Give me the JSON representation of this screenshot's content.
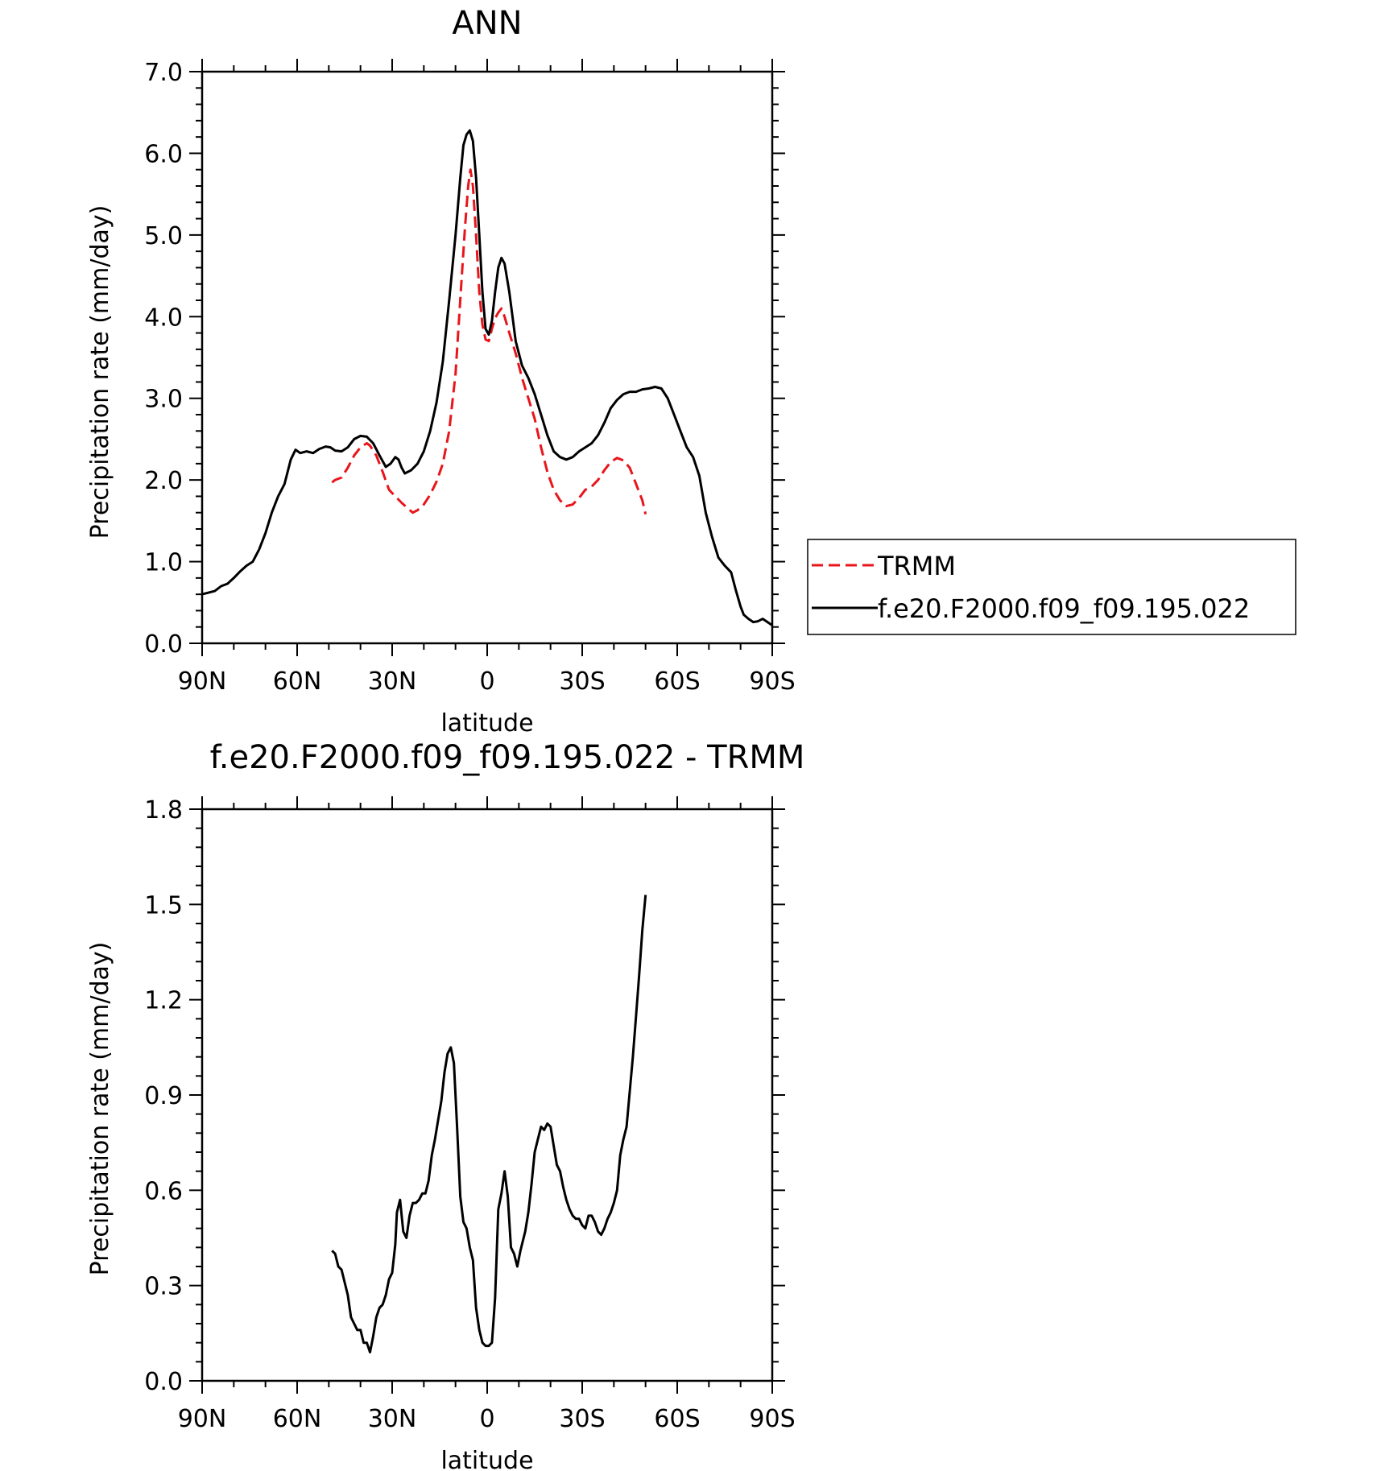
{
  "chart_data": [
    {
      "type": "line",
      "title": "ANN",
      "xlabel": "latitude",
      "ylabel": "Precipitation rate (mm/day)",
      "xlim": [
        90,
        -90
      ],
      "ylim": [
        0,
        7
      ],
      "x_ticks": [
        90,
        60,
        30,
        0,
        -30,
        -60,
        -90
      ],
      "x_tick_labels": [
        "90N",
        "60N",
        "30N",
        "0",
        "30S",
        "60S",
        "90S"
      ],
      "y_ticks": [
        0,
        1,
        2,
        3,
        4,
        5,
        6,
        7
      ],
      "y_tick_labels": [
        "0.0",
        "1.0",
        "2.0",
        "3.0",
        "4.0",
        "5.0",
        "6.0",
        "7.0"
      ],
      "grid": false,
      "legend": {
        "position": "right",
        "entries": [
          "TRMM",
          "f.e20.F2000.f09_f09.195.022"
        ]
      },
      "series": [
        {
          "name": "TRMM",
          "color": "#e8151b",
          "dash": true,
          "points": [
            [
              49,
              1.97
            ],
            [
              48,
              2.0
            ],
            [
              46,
              2.03
            ],
            [
              44,
              2.15
            ],
            [
              42,
              2.3
            ],
            [
              40,
              2.4
            ],
            [
              38,
              2.45
            ],
            [
              37,
              2.42
            ],
            [
              35,
              2.3
            ],
            [
              33,
              2.1
            ],
            [
              31,
              1.88
            ],
            [
              29,
              1.8
            ],
            [
              27,
              1.72
            ],
            [
              25,
              1.65
            ],
            [
              23.5,
              1.6
            ],
            [
              22,
              1.63
            ],
            [
              20,
              1.7
            ],
            [
              18,
              1.82
            ],
            [
              16,
              1.98
            ],
            [
              14,
              2.2
            ],
            [
              12,
              2.6
            ],
            [
              10,
              3.3
            ],
            [
              9,
              3.9
            ],
            [
              8,
              4.5
            ],
            [
              7,
              5.1
            ],
            [
              6,
              5.6
            ],
            [
              5.3,
              5.8
            ],
            [
              4.5,
              5.6
            ],
            [
              3.5,
              5.0
            ],
            [
              2.5,
              4.3
            ],
            [
              1.5,
              3.9
            ],
            [
              0.5,
              3.72
            ],
            [
              -0.5,
              3.7
            ],
            [
              -1.5,
              3.85
            ],
            [
              -2.5,
              3.98
            ],
            [
              -3.5,
              4.05
            ],
            [
              -4.5,
              4.1
            ],
            [
              -5.5,
              4.0
            ],
            [
              -7,
              3.8
            ],
            [
              -9,
              3.55
            ],
            [
              -11,
              3.25
            ],
            [
              -13,
              3.0
            ],
            [
              -15,
              2.75
            ],
            [
              -17,
              2.4
            ],
            [
              -19,
              2.1
            ],
            [
              -21,
              1.88
            ],
            [
              -23,
              1.75
            ],
            [
              -25,
              1.68
            ],
            [
              -27,
              1.7
            ],
            [
              -29,
              1.78
            ],
            [
              -31,
              1.88
            ],
            [
              -33,
              1.92
            ],
            [
              -35,
              2.0
            ],
            [
              -37,
              2.12
            ],
            [
              -39,
              2.22
            ],
            [
              -41,
              2.27
            ],
            [
              -43,
              2.24
            ],
            [
              -45,
              2.15
            ],
            [
              -47,
              1.95
            ],
            [
              -49,
              1.75
            ],
            [
              -50,
              1.58
            ]
          ]
        },
        {
          "name": "f.e20.F2000.f09_f09.195.022",
          "color": "#000000",
          "dash": false,
          "points": [
            [
              90,
              0.6
            ],
            [
              88,
              0.62
            ],
            [
              86,
              0.64
            ],
            [
              84,
              0.7
            ],
            [
              82,
              0.73
            ],
            [
              80,
              0.8
            ],
            [
              78,
              0.88
            ],
            [
              76,
              0.95
            ],
            [
              74,
              1.0
            ],
            [
              72,
              1.15
            ],
            [
              70,
              1.35
            ],
            [
              68,
              1.6
            ],
            [
              66,
              1.8
            ],
            [
              64,
              1.95
            ],
            [
              62,
              2.25
            ],
            [
              60.5,
              2.37
            ],
            [
              59,
              2.33
            ],
            [
              57,
              2.35
            ],
            [
              55,
              2.33
            ],
            [
              53,
              2.38
            ],
            [
              51,
              2.41
            ],
            [
              49.5,
              2.4
            ],
            [
              48,
              2.36
            ],
            [
              46,
              2.35
            ],
            [
              44,
              2.4
            ],
            [
              42,
              2.5
            ],
            [
              40,
              2.54
            ],
            [
              38,
              2.53
            ],
            [
              36,
              2.45
            ],
            [
              34,
              2.3
            ],
            [
              32,
              2.16
            ],
            [
              30.5,
              2.2
            ],
            [
              29,
              2.28
            ],
            [
              28,
              2.25
            ],
            [
              27,
              2.15
            ],
            [
              26,
              2.08
            ],
            [
              24,
              2.12
            ],
            [
              22,
              2.2
            ],
            [
              20,
              2.35
            ],
            [
              18,
              2.6
            ],
            [
              16,
              2.95
            ],
            [
              14,
              3.45
            ],
            [
              12,
              4.2
            ],
            [
              10,
              5.0
            ],
            [
              8.5,
              5.7
            ],
            [
              7.5,
              6.1
            ],
            [
              6.5,
              6.23
            ],
            [
              5.5,
              6.28
            ],
            [
              4.5,
              6.15
            ],
            [
              3.5,
              5.7
            ],
            [
              2.5,
              5.0
            ],
            [
              1.5,
              4.3
            ],
            [
              0.5,
              3.85
            ],
            [
              -0.5,
              3.78
            ],
            [
              -1.5,
              3.95
            ],
            [
              -2.5,
              4.3
            ],
            [
              -3.5,
              4.6
            ],
            [
              -4.5,
              4.72
            ],
            [
              -5.5,
              4.65
            ],
            [
              -7,
              4.3
            ],
            [
              -9,
              3.7
            ],
            [
              -11,
              3.4
            ],
            [
              -13,
              3.25
            ],
            [
              -15,
              3.05
            ],
            [
              -17,
              2.8
            ],
            [
              -19,
              2.55
            ],
            [
              -21,
              2.35
            ],
            [
              -23,
              2.28
            ],
            [
              -25,
              2.25
            ],
            [
              -27,
              2.28
            ],
            [
              -29,
              2.35
            ],
            [
              -31,
              2.4
            ],
            [
              -33,
              2.45
            ],
            [
              -35,
              2.55
            ],
            [
              -37,
              2.7
            ],
            [
              -39,
              2.88
            ],
            [
              -41,
              2.98
            ],
            [
              -43,
              3.05
            ],
            [
              -45,
              3.08
            ],
            [
              -47,
              3.08
            ],
            [
              -49,
              3.11
            ],
            [
              -51,
              3.12
            ],
            [
              -53,
              3.14
            ],
            [
              -55,
              3.12
            ],
            [
              -57,
              3.0
            ],
            [
              -59,
              2.8
            ],
            [
              -61,
              2.6
            ],
            [
              -63,
              2.4
            ],
            [
              -65,
              2.28
            ],
            [
              -67,
              2.05
            ],
            [
              -69,
              1.6
            ],
            [
              -71,
              1.3
            ],
            [
              -73,
              1.05
            ],
            [
              -75,
              0.95
            ],
            [
              -77,
              0.87
            ],
            [
              -78.5,
              0.65
            ],
            [
              -80,
              0.45
            ],
            [
              -81,
              0.35
            ],
            [
              -82.5,
              0.3
            ],
            [
              -84,
              0.26
            ],
            [
              -85.5,
              0.27
            ],
            [
              -87,
              0.3
            ],
            [
              -88.5,
              0.26
            ],
            [
              -90,
              0.22
            ]
          ]
        }
      ]
    },
    {
      "type": "line",
      "title": "f.e20.F2000.f09_f09.195.022 - TRMM",
      "xlabel": "latitude",
      "ylabel": "Precipitation rate (mm/day)",
      "xlim": [
        90,
        -90
      ],
      "ylim": [
        0,
        1.8
      ],
      "x_ticks": [
        90,
        60,
        30,
        0,
        -30,
        -60,
        -90
      ],
      "x_tick_labels": [
        "90N",
        "60N",
        "30N",
        "0",
        "30S",
        "60S",
        "90S"
      ],
      "y_ticks": [
        0,
        0.3,
        0.6,
        0.9,
        1.2,
        1.5,
        1.8
      ],
      "y_tick_labels": [
        "0.0",
        "0.3",
        "0.6",
        "0.9",
        "1.2",
        "1.5",
        "1.8"
      ],
      "grid": false,
      "series": [
        {
          "color": "#000000",
          "dash": false,
          "points": [
            [
              49,
              0.41
            ],
            [
              48,
              0.4
            ],
            [
              47,
              0.36
            ],
            [
              46,
              0.35
            ],
            [
              45,
              0.31
            ],
            [
              44,
              0.27
            ],
            [
              43,
              0.2
            ],
            [
              42,
              0.18
            ],
            [
              41,
              0.16
            ],
            [
              40,
              0.16
            ],
            [
              39,
              0.12
            ],
            [
              38,
              0.12
            ],
            [
              37,
              0.09
            ],
            [
              36,
              0.14
            ],
            [
              35,
              0.2
            ],
            [
              34,
              0.23
            ],
            [
              33,
              0.24
            ],
            [
              32,
              0.27
            ],
            [
              31,
              0.32
            ],
            [
              30,
              0.34
            ],
            [
              29,
              0.43
            ],
            [
              28.5,
              0.53
            ],
            [
              27.5,
              0.57
            ],
            [
              26.5,
              0.47
            ],
            [
              25.5,
              0.45
            ],
            [
              24.5,
              0.52
            ],
            [
              23.5,
              0.56
            ],
            [
              22.5,
              0.56
            ],
            [
              21.5,
              0.57
            ],
            [
              20.5,
              0.59
            ],
            [
              19.5,
              0.59
            ],
            [
              18.5,
              0.63
            ],
            [
              17.5,
              0.71
            ],
            [
              16.5,
              0.76
            ],
            [
              15.5,
              0.82
            ],
            [
              14.5,
              0.88
            ],
            [
              13.5,
              0.97
            ],
            [
              12.5,
              1.03
            ],
            [
              11.5,
              1.05
            ],
            [
              10.5,
              1.0
            ],
            [
              9.5,
              0.8
            ],
            [
              8.5,
              0.58
            ],
            [
              7.5,
              0.5
            ],
            [
              6.5,
              0.48
            ],
            [
              5.5,
              0.42
            ],
            [
              4.5,
              0.38
            ],
            [
              3.5,
              0.23
            ],
            [
              2.5,
              0.16
            ],
            [
              1.5,
              0.12
            ],
            [
              0.5,
              0.11
            ],
            [
              -0.5,
              0.11
            ],
            [
              -1.5,
              0.12
            ],
            [
              -2.5,
              0.26
            ],
            [
              -3.5,
              0.54
            ],
            [
              -4.5,
              0.59
            ],
            [
              -5.5,
              0.66
            ],
            [
              -6.5,
              0.58
            ],
            [
              -7.5,
              0.42
            ],
            [
              -8.5,
              0.4
            ],
            [
              -9.5,
              0.36
            ],
            [
              -10.5,
              0.41
            ],
            [
              -12,
              0.47
            ],
            [
              -13,
              0.53
            ],
            [
              -14,
              0.62
            ],
            [
              -15,
              0.72
            ],
            [
              -16,
              0.76
            ],
            [
              -17,
              0.8
            ],
            [
              -18,
              0.79
            ],
            [
              -19,
              0.81
            ],
            [
              -20,
              0.8
            ],
            [
              -21,
              0.74
            ],
            [
              -22,
              0.68
            ],
            [
              -23,
              0.66
            ],
            [
              -24,
              0.61
            ],
            [
              -25,
              0.57
            ],
            [
              -26,
              0.54
            ],
            [
              -27,
              0.52
            ],
            [
              -28,
              0.51
            ],
            [
              -29,
              0.51
            ],
            [
              -30,
              0.49
            ],
            [
              -31,
              0.48
            ],
            [
              -32,
              0.52
            ],
            [
              -33,
              0.52
            ],
            [
              -34,
              0.5
            ],
            [
              -35,
              0.47
            ],
            [
              -36,
              0.46
            ],
            [
              -37,
              0.48
            ],
            [
              -38,
              0.51
            ],
            [
              -39,
              0.53
            ],
            [
              -40,
              0.56
            ],
            [
              -41,
              0.6
            ],
            [
              -42,
              0.71
            ],
            [
              -43,
              0.76
            ],
            [
              -44,
              0.8
            ],
            [
              -45,
              0.91
            ],
            [
              -46,
              1.02
            ],
            [
              -47,
              1.15
            ],
            [
              -48,
              1.28
            ],
            [
              -49,
              1.42
            ],
            [
              -50,
              1.53
            ]
          ]
        }
      ]
    }
  ]
}
